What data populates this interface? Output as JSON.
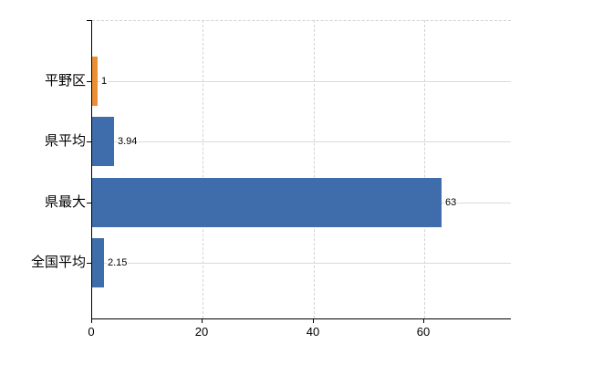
{
  "chart_data": {
    "type": "bar",
    "orientation": "horizontal",
    "title": "",
    "categories": [
      "平野区",
      "県平均",
      "県最大",
      "全国平均"
    ],
    "values": [
      1,
      3.94,
      63,
      2.15
    ],
    "value_labels": [
      "1",
      "3.94",
      "63",
      "2.15"
    ],
    "series_colors": [
      "#ea8f36",
      "#3f6dab",
      "#3f6dab",
      "#3f6dab"
    ],
    "xlabel": "",
    "ylabel": "",
    "xlim": [
      0,
      75.6
    ],
    "x_ticks": [
      0,
      20,
      40,
      60
    ],
    "x_tick_labels": [
      "0",
      "20",
      "40",
      "60"
    ],
    "grid": {
      "vertical": "dashed",
      "horizontal": "solid"
    },
    "legend": null
  },
  "colors": {
    "bar_orange": "#ea8f36",
    "bar_blue": "#3f6dab",
    "axis_line": "#000000",
    "horizontal_gridline": "#d6ddd5",
    "vertical_gridline": "#d5d1d8",
    "label_text": "#000000",
    "background": "#ffffff"
  }
}
